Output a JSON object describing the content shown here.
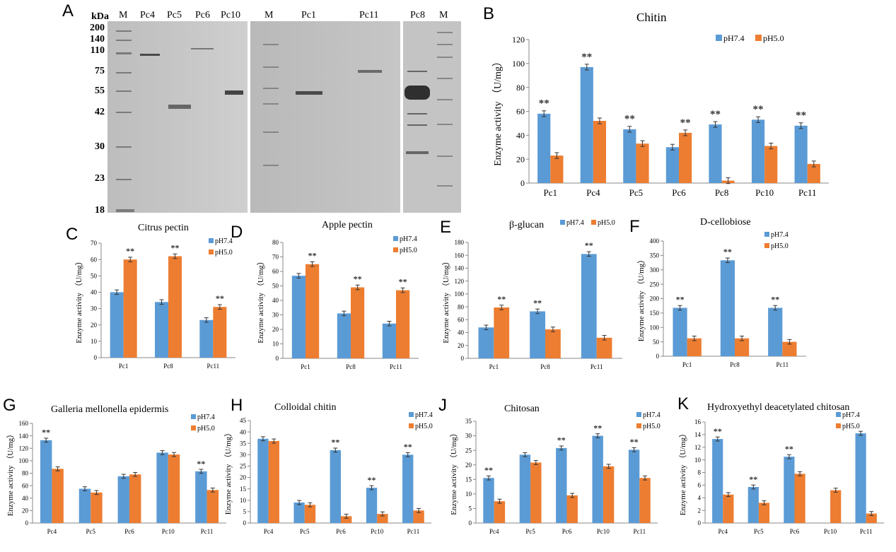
{
  "panel_letters": {
    "A": "A",
    "B": "B",
    "C": "C",
    "D": "D",
    "E": "E",
    "F": "F",
    "G": "G",
    "H": "H",
    "J": "J",
    "K": "K"
  },
  "gel": {
    "kda_title": "kDa",
    "markers": [
      "200",
      "140",
      "110",
      "75",
      "55",
      "42",
      "30",
      "23",
      "18"
    ],
    "lanes_left": [
      "M",
      "Pc4",
      "Pc5",
      "Pc6",
      "Pc10"
    ],
    "lanes_mid": [
      "M",
      "Pc1",
      "Pc11"
    ],
    "lanes_right": [
      "Pc8",
      "M"
    ]
  },
  "chart_data": [
    {
      "id": "B",
      "type": "bar",
      "title": "Chitin",
      "ylabel": "Enzyme activity （U/mg）",
      "xlabel": "",
      "categories": [
        "Pc1",
        "Pc4",
        "Pc5",
        "Pc6",
        "Pc8",
        "Pc10",
        "Pc11"
      ],
      "ylim": [
        0,
        120
      ],
      "yticks": [
        0,
        20,
        40,
        60,
        80,
        100,
        120
      ],
      "series": [
        {
          "name": "pH7.4",
          "color": "#5b9bd5",
          "values": [
            58,
            97,
            45,
            30,
            49,
            53,
            48
          ]
        },
        {
          "name": "pH5.0",
          "color": "#ed7d31",
          "values": [
            23,
            52,
            33,
            42,
            2,
            31,
            16
          ]
        }
      ],
      "annotations": [
        "**",
        "**",
        "**",
        "**",
        "**",
        "**",
        "**"
      ],
      "legend": "top-right"
    },
    {
      "id": "C",
      "type": "bar",
      "title": "Citrus pectin",
      "ylabel": "Enzyme activity （U/mg）",
      "xlabel": "",
      "categories": [
        "Pc1",
        "Pc8",
        "Pc11"
      ],
      "ylim": [
        0,
        70
      ],
      "yticks": [
        0,
        10,
        20,
        30,
        40,
        50,
        60,
        70
      ],
      "series": [
        {
          "name": "pH7.4",
          "color": "#5b9bd5",
          "values": [
            40,
            34,
            23
          ]
        },
        {
          "name": "pH5.0",
          "color": "#ed7d31",
          "values": [
            60,
            62,
            31
          ]
        }
      ],
      "annotations": [
        "**",
        "**",
        "**"
      ],
      "legend": "top-right"
    },
    {
      "id": "D",
      "type": "bar",
      "title": "Apple pectin",
      "ylabel": "Enzyme activity （U/mg）",
      "xlabel": "",
      "categories": [
        "Pc1",
        "Pc8",
        "Pc11"
      ],
      "ylim": [
        0,
        80
      ],
      "yticks": [
        0,
        10,
        20,
        30,
        40,
        50,
        60,
        70,
        80
      ],
      "series": [
        {
          "name": "pH7.4",
          "color": "#5b9bd5",
          "values": [
            57,
            31,
            24
          ]
        },
        {
          "name": "pH5.0",
          "color": "#ed7d31",
          "values": [
            65,
            49,
            47
          ]
        }
      ],
      "annotations": [
        "**",
        "**",
        "**"
      ],
      "legend": "top-right"
    },
    {
      "id": "E",
      "type": "bar",
      "title": "β-glucan",
      "ylabel": "Enzyme activity （U/mg）",
      "xlabel": "",
      "categories": [
        "Pc1",
        "Pc8",
        "Pc11"
      ],
      "ylim": [
        0,
        180
      ],
      "yticks": [
        0,
        20,
        40,
        60,
        80,
        100,
        120,
        140,
        160,
        180
      ],
      "series": [
        {
          "name": "pH7.4",
          "color": "#5b9bd5",
          "values": [
            48,
            73,
            162
          ]
        },
        {
          "name": "pH5.0",
          "color": "#ed7d31",
          "values": [
            79,
            45,
            32
          ]
        }
      ],
      "annotations": [
        "**",
        "**",
        "**"
      ],
      "legend": "top-right"
    },
    {
      "id": "F",
      "type": "bar",
      "title": "D-cellobiose",
      "ylabel": "Enzyme activity （U/mg）",
      "xlabel": "",
      "categories": [
        "Pc1",
        "Pc8",
        "Pc11"
      ],
      "ylim": [
        0,
        400
      ],
      "yticks": [
        0,
        50,
        100,
        150,
        200,
        250,
        300,
        350,
        400
      ],
      "series": [
        {
          "name": "pH7.4",
          "color": "#5b9bd5",
          "values": [
            168,
            333,
            168
          ]
        },
        {
          "name": "pH5.0",
          "color": "#ed7d31",
          "values": [
            62,
            62,
            50
          ]
        }
      ],
      "annotations": [
        "**",
        "**",
        "**"
      ],
      "legend": "top-right"
    },
    {
      "id": "G",
      "type": "bar",
      "title": "Galleria mellonella epidermis",
      "ylabel": "Enzyme activity （U/mg）",
      "xlabel": "",
      "categories": [
        "Pc4",
        "Pc5",
        "Pc6",
        "Pc10",
        "Pc11"
      ],
      "ylim": [
        0,
        160
      ],
      "yticks": [
        0,
        20,
        40,
        60,
        80,
        100,
        120,
        140,
        160
      ],
      "series": [
        {
          "name": "pH7.4",
          "color": "#5b9bd5",
          "values": [
            133,
            55,
            75,
            113,
            83
          ]
        },
        {
          "name": "pH5.0",
          "color": "#ed7d31",
          "values": [
            87,
            49,
            78,
            110,
            53
          ]
        }
      ],
      "annotations": [
        "**",
        "",
        "",
        "",
        "**"
      ],
      "legend": "top-right"
    },
    {
      "id": "H",
      "type": "bar",
      "title": "Colloidal chitin",
      "ylabel": "Enzyme activity （U/mg）",
      "xlabel": "",
      "categories": [
        "Pc4",
        "Pc5",
        "Pc6",
        "Pc10",
        "Pc11"
      ],
      "ylim": [
        0,
        45
      ],
      "yticks": [
        0,
        5,
        10,
        15,
        20,
        25,
        30,
        35,
        40,
        45
      ],
      "series": [
        {
          "name": "pH7.4",
          "color": "#5b9bd5",
          "values": [
            37,
            9,
            32,
            15.5,
            30
          ]
        },
        {
          "name": "pH5.0",
          "color": "#ed7d31",
          "values": [
            36,
            8,
            3,
            4,
            5.5
          ]
        }
      ],
      "annotations": [
        "",
        "",
        "**",
        "**",
        "**"
      ],
      "legend": "top-right"
    },
    {
      "id": "J",
      "type": "bar",
      "title": "Chitosan",
      "ylabel": "Enzyme activity （U/mg）",
      "xlabel": "",
      "categories": [
        "Pc4",
        "Pc5",
        "Pc6",
        "Pc10",
        "Pc11"
      ],
      "ylim": [
        0,
        35
      ],
      "yticks": [
        0,
        5,
        10,
        15,
        20,
        25,
        30,
        35
      ],
      "series": [
        {
          "name": "pH7.4",
          "color": "#5b9bd5",
          "values": [
            15.5,
            23.5,
            25.8,
            30,
            25.2
          ]
        },
        {
          "name": "pH5.0",
          "color": "#ed7d31",
          "values": [
            7.5,
            20.8,
            9.5,
            19.5,
            15.5
          ]
        }
      ],
      "annotations": [
        "**",
        "",
        "**",
        "**",
        "**"
      ],
      "legend": "top-right"
    },
    {
      "id": "K",
      "type": "bar",
      "title": "Hydroxyethyl deacetylated chitosan",
      "ylabel": "Enzyme activity （U/mg）",
      "xlabel": "",
      "categories": [
        "Pc4",
        "Pc5",
        "Pc6",
        "Pc10",
        "Pc11"
      ],
      "ylim": [
        0,
        16
      ],
      "yticks": [
        0,
        2,
        4,
        6,
        8,
        10,
        12,
        14,
        16
      ],
      "series": [
        {
          "name": "pH7.4",
          "color": "#5b9bd5",
          "values": [
            13.3,
            5.7,
            10.5,
            0,
            14.2
          ]
        },
        {
          "name": "pH5.0",
          "color": "#ed7d31",
          "values": [
            4.5,
            3.2,
            7.8,
            5.2,
            1.5
          ]
        }
      ],
      "annotations": [
        "**",
        "**",
        "**",
        "",
        ""
      ],
      "legend": "top-right"
    }
  ]
}
